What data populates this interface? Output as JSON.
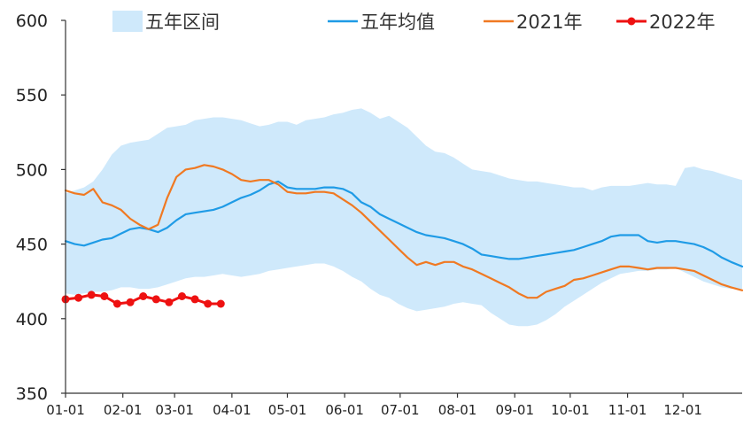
{
  "chart_data": {
    "type": "line",
    "ylim": [
      350,
      600
    ],
    "yticks": [
      350,
      400,
      450,
      500,
      550,
      600
    ],
    "x_tick_labels": [
      "01-01",
      "02-01",
      "03-01",
      "04-01",
      "05-01",
      "06-01",
      "07-01",
      "08-01",
      "09-01",
      "10-01",
      "11-01",
      "12-01"
    ],
    "x_tick_days": [
      0,
      31,
      59,
      90,
      120,
      151,
      181,
      212,
      243,
      273,
      304,
      334
    ],
    "x_range_days": [
      0,
      366
    ],
    "legend": {
      "band": "五年区间",
      "avg": "五年均值",
      "y2021": "2021年",
      "y2022": "2022年"
    },
    "colors": {
      "band": "#cfe9fb",
      "avg": "#1f9be6",
      "y2021": "#f07922",
      "y2022": "#ee1111",
      "axis": "#333333"
    },
    "band": {
      "days": [
        0,
        5,
        10,
        15,
        20,
        25,
        30,
        35,
        40,
        45,
        50,
        55,
        60,
        65,
        70,
        75,
        80,
        85,
        90,
        95,
        100,
        105,
        110,
        115,
        120,
        125,
        130,
        135,
        140,
        145,
        150,
        155,
        160,
        165,
        170,
        175,
        180,
        185,
        190,
        195,
        200,
        205,
        210,
        215,
        220,
        225,
        230,
        235,
        240,
        245,
        250,
        255,
        260,
        265,
        270,
        275,
        280,
        285,
        290,
        295,
        300,
        305,
        310,
        315,
        320,
        325,
        330,
        335,
        340,
        345,
        350,
        355,
        360,
        366
      ],
      "upper": [
        484,
        486,
        488,
        492,
        500,
        510,
        516,
        518,
        519,
        520,
        524,
        528,
        529,
        530,
        533,
        534,
        535,
        535,
        534,
        533,
        531,
        529,
        530,
        532,
        532,
        530,
        533,
        534,
        535,
        537,
        538,
        540,
        541,
        538,
        534,
        536,
        532,
        528,
        522,
        516,
        512,
        511,
        508,
        504,
        500,
        499,
        498,
        496,
        494,
        493,
        492,
        492,
        491,
        490,
        489,
        488,
        488,
        486,
        488,
        489,
        489,
        489,
        490,
        491,
        490,
        490,
        489,
        501,
        502,
        500,
        499,
        497,
        495,
        493
      ],
      "lower": [
        417,
        416,
        417,
        418,
        418,
        419,
        421,
        421,
        420,
        420,
        421,
        423,
        425,
        427,
        428,
        428,
        429,
        430,
        429,
        428,
        429,
        430,
        432,
        433,
        434,
        435,
        436,
        437,
        437,
        435,
        432,
        428,
        425,
        420,
        416,
        414,
        410,
        407,
        405,
        406,
        407,
        408,
        410,
        411,
        410,
        409,
        404,
        400,
        396,
        395,
        395,
        396,
        399,
        403,
        408,
        412,
        416,
        420,
        424,
        427,
        430,
        431,
        432,
        432,
        433,
        433,
        434,
        431,
        428,
        425,
        423,
        421,
        420,
        420
      ]
    },
    "series": [
      {
        "name": "五年均值",
        "days": [
          0,
          5,
          10,
          15,
          20,
          25,
          30,
          35,
          40,
          45,
          50,
          55,
          60,
          65,
          70,
          75,
          80,
          85,
          90,
          95,
          100,
          105,
          110,
          115,
          120,
          125,
          130,
          135,
          140,
          145,
          150,
          155,
          160,
          165,
          170,
          175,
          180,
          185,
          190,
          195,
          200,
          205,
          210,
          215,
          220,
          225,
          230,
          235,
          240,
          245,
          250,
          255,
          260,
          265,
          270,
          275,
          280,
          285,
          290,
          295,
          300,
          305,
          310,
          315,
          320,
          325,
          330,
          335,
          340,
          345,
          350,
          355,
          360,
          366
        ],
        "values": [
          452,
          450,
          449,
          451,
          453,
          454,
          457,
          460,
          461,
          460,
          458,
          461,
          466,
          470,
          471,
          472,
          473,
          475,
          478,
          481,
          483,
          486,
          490,
          492,
          488,
          487,
          487,
          487,
          488,
          488,
          487,
          484,
          478,
          475,
          470,
          467,
          464,
          461,
          458,
          456,
          455,
          454,
          452,
          450,
          447,
          443,
          442,
          441,
          440,
          440,
          441,
          442,
          443,
          444,
          445,
          446,
          448,
          450,
          452,
          455,
          456,
          456,
          456,
          452,
          451,
          452,
          452,
          451,
          450,
          448,
          445,
          441,
          438,
          435
        ]
      },
      {
        "name": "2021年",
        "days": [
          0,
          5,
          10,
          15,
          20,
          25,
          30,
          35,
          40,
          45,
          50,
          55,
          60,
          65,
          70,
          75,
          80,
          85,
          90,
          95,
          100,
          105,
          110,
          115,
          120,
          125,
          130,
          135,
          140,
          145,
          150,
          155,
          160,
          165,
          170,
          175,
          180,
          185,
          190,
          195,
          200,
          205,
          210,
          215,
          220,
          225,
          230,
          235,
          240,
          245,
          250,
          255,
          260,
          265,
          270,
          275,
          280,
          285,
          290,
          295,
          300,
          305,
          310,
          315,
          320,
          325,
          330,
          335,
          340,
          345,
          350,
          355,
          360,
          366
        ],
        "values": [
          486,
          484,
          483,
          487,
          478,
          476,
          473,
          467,
          463,
          460,
          463,
          481,
          495,
          500,
          501,
          503,
          502,
          500,
          497,
          493,
          492,
          493,
          493,
          490,
          485,
          484,
          484,
          485,
          485,
          484,
          480,
          476,
          471,
          465,
          459,
          453,
          447,
          441,
          436,
          438,
          436,
          438,
          438,
          435,
          433,
          430,
          427,
          424,
          421,
          417,
          414,
          414,
          418,
          420,
          422,
          426,
          427,
          429,
          431,
          433,
          435,
          435,
          434,
          433,
          434,
          434,
          434,
          433,
          432,
          429,
          426,
          423,
          421,
          419
        ]
      },
      {
        "name": "2022年",
        "days": [
          0,
          7,
          14,
          21,
          28,
          35,
          42,
          49,
          56,
          63,
          70,
          77,
          84
        ],
        "values": [
          413,
          414,
          416,
          415,
          410,
          411,
          415,
          413,
          411,
          415,
          413,
          410,
          410
        ]
      }
    ]
  }
}
